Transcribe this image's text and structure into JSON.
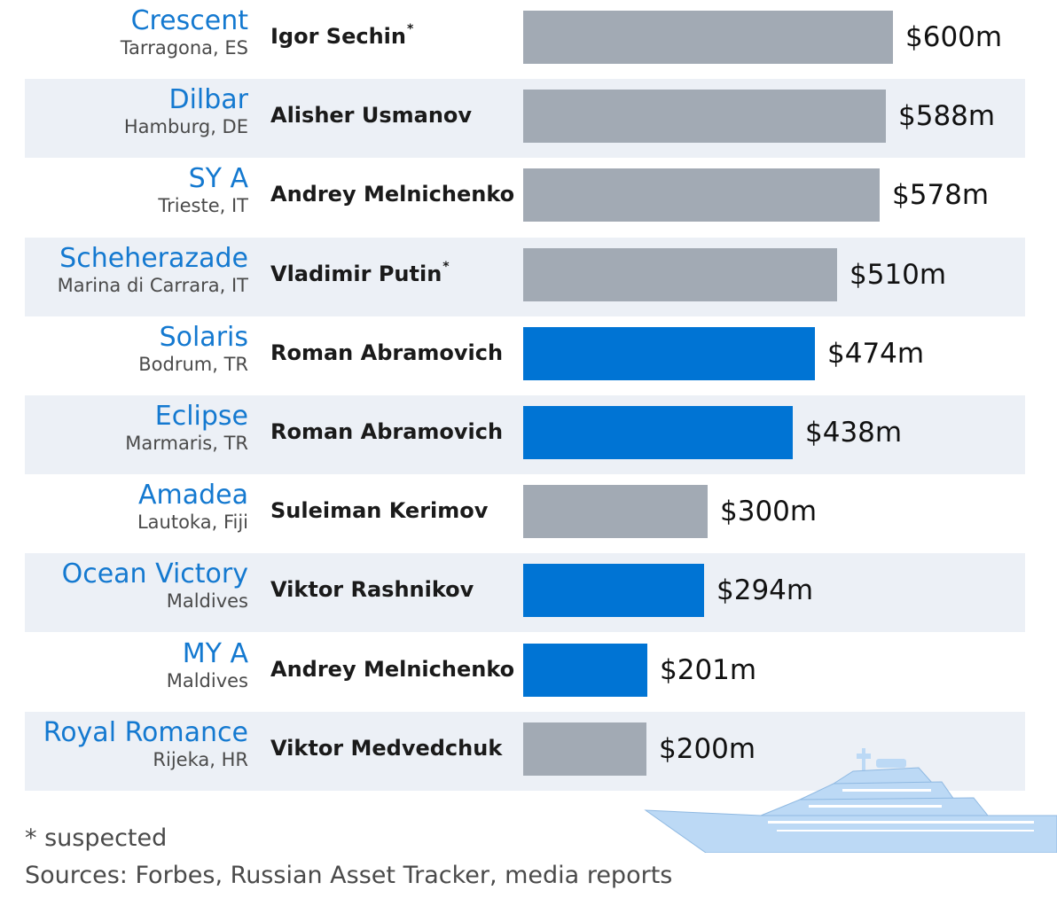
{
  "colors": {
    "row_shade": "#ecf0f6",
    "name_blue": "#1479d0",
    "bar_gray": "#a2aab4",
    "bar_blue": "#0074d4",
    "yacht_fill": "#bcd9f5"
  },
  "chart_data": {
    "type": "bar",
    "orientation": "horizontal",
    "unit": "$m",
    "xlim": [
      0,
      600
    ],
    "grid": false,
    "rows": [
      {
        "name": "Crescent",
        "location": "Tarragona, ES",
        "owner": "Igor Sechin",
        "suspected_mark": "*",
        "value": 600,
        "value_label": "$600m",
        "color": "gray",
        "shaded": false
      },
      {
        "name": "Dilbar",
        "location": "Hamburg, DE",
        "owner": "Alisher Usmanov",
        "suspected_mark": "",
        "value": 588,
        "value_label": "$588m",
        "color": "gray",
        "shaded": true
      },
      {
        "name": "SY A",
        "location": "Trieste, IT",
        "owner": "Andrey Melnichenko",
        "suspected_mark": "",
        "value": 578,
        "value_label": "$578m",
        "color": "gray",
        "shaded": false
      },
      {
        "name": "Scheherazade",
        "location": "Marina di Carrara, IT",
        "owner": "Vladimir Putin",
        "suspected_mark": "*",
        "value": 510,
        "value_label": "$510m",
        "color": "gray",
        "shaded": true
      },
      {
        "name": "Solaris",
        "location": "Bodrum, TR",
        "owner": "Roman Abramovich",
        "suspected_mark": "",
        "value": 474,
        "value_label": "$474m",
        "color": "blue",
        "shaded": false
      },
      {
        "name": "Eclipse",
        "location": "Marmaris, TR",
        "owner": "Roman Abramovich",
        "suspected_mark": "",
        "value": 438,
        "value_label": "$438m",
        "color": "blue",
        "shaded": true
      },
      {
        "name": "Amadea",
        "location": "Lautoka, Fiji",
        "owner": "Suleiman Kerimov",
        "suspected_mark": "",
        "value": 300,
        "value_label": "$300m",
        "color": "gray",
        "shaded": false
      },
      {
        "name": "Ocean Victory",
        "location": "Maldives",
        "owner": "Viktor Rashnikov",
        "suspected_mark": "",
        "value": 294,
        "value_label": "$294m",
        "color": "blue",
        "shaded": true
      },
      {
        "name": "MY A",
        "location": "Maldives",
        "owner": "Andrey Melnichenko",
        "suspected_mark": "",
        "value": 201,
        "value_label": "$201m",
        "color": "blue",
        "shaded": false
      },
      {
        "name": "Royal Romance",
        "location": "Rijeka, HR",
        "owner": "Viktor Medvedchuk",
        "suspected_mark": "",
        "value": 200,
        "value_label": "$200m",
        "color": "gray",
        "shaded": true
      }
    ]
  },
  "footer": {
    "footnote": "* suspected",
    "sources": "Sources: Forbes, Russian Asset Tracker, media reports"
  },
  "illustration": {
    "icon": "yacht-icon"
  }
}
